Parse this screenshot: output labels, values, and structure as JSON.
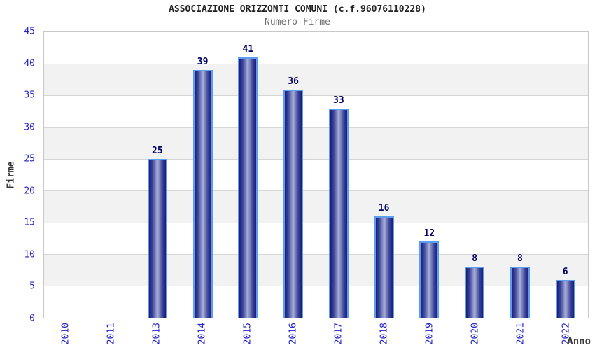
{
  "header": {
    "title": "ASSOCIAZIONE ORIZZONTI COMUNI (c.f.96076110228)",
    "subtitle": "Numero Firme"
  },
  "chart_data": {
    "type": "bar",
    "title": "ASSOCIAZIONE ORIZZONTI COMUNI (c.f.96076110228)",
    "subtitle": "Numero Firme",
    "categories": [
      "2010",
      "2011",
      "2013",
      "2014",
      "2015",
      "2016",
      "2017",
      "2018",
      "2019",
      "2020",
      "2021",
      "2022"
    ],
    "values": [
      0,
      0,
      25,
      39,
      41,
      36,
      33,
      16,
      12,
      8,
      8,
      6
    ],
    "xlabel": "Anno",
    "ylabel": "Firme",
    "ylim": [
      0,
      45
    ],
    "ytick_step": 5,
    "yticks": [
      0,
      5,
      10,
      15,
      20,
      25,
      30,
      35,
      40,
      45
    ],
    "grid": "horizontal gridlines with alternating gray row bands",
    "legend": "none",
    "bar_label_rule": "value shown above each nonzero bar",
    "x_tick_rotation_degrees": 90
  },
  "colors": {
    "background": "#ffffff",
    "title_text": "#222222",
    "subtitle_text": "#707070",
    "axis_tick_text": "#2222cc",
    "bar_value_text": "#000066",
    "axis_title_text": "#333333",
    "band_fill": "#f2f2f2",
    "gridline": "#d6d6d6",
    "plot_border": "#c9c9c9",
    "bar_border": "#5b9ef0",
    "bar_edge": "#1b1f75",
    "bar_center": "#aab1d8"
  }
}
